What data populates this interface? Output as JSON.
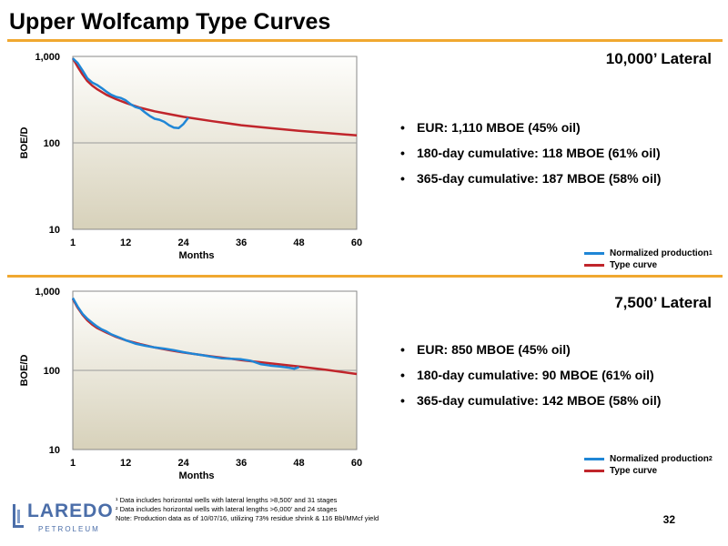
{
  "title": "Upper Wolfcamp Type Curves",
  "colors": {
    "accent": "#f0a830",
    "normalized": "#1f86d6",
    "type_curve": "#c0252b"
  },
  "panels": [
    {
      "lateral": "10,000’ Lateral",
      "bullets": [
        "EUR:  1,110 MBOE (45% oil)",
        "180-day cumulative:  118 MBOE (61% oil)",
        "365-day cumulative: 187 MBOE (58% oil)"
      ],
      "legend": [
        {
          "label": "Normalized production",
          "note": "1"
        },
        {
          "label": "Type curve",
          "note": ""
        }
      ]
    },
    {
      "lateral": "7,500’ Lateral",
      "bullets": [
        "EUR:  850 MBOE (45% oil)",
        "180-day cumulative:  90 MBOE (61% oil)",
        "365-day cumulative: 142 MBOE (58% oil)"
      ],
      "legend": [
        {
          "label": "Normalized production",
          "note": "2"
        },
        {
          "label": "Type curve",
          "note": ""
        }
      ]
    }
  ],
  "chart_data": [
    {
      "type": "line",
      "xlabel": "Months",
      "ylabel": "BOE/D",
      "xlim": [
        1,
        60
      ],
      "ylim": [
        10,
        1000
      ],
      "yscale": "log",
      "x_ticks": [
        "1",
        "12",
        "24",
        "36",
        "48",
        "60"
      ],
      "y_ticks": [
        "10",
        "100",
        "1,000"
      ],
      "series": [
        {
          "name": "Normalized production",
          "x": [
            1,
            2,
            3,
            4,
            5,
            6,
            7,
            8,
            9,
            10,
            11,
            12,
            13,
            14,
            15,
            16,
            17,
            18,
            19,
            20,
            21,
            22,
            23,
            24,
            25
          ],
          "y": [
            950,
            840,
            690,
            560,
            500,
            470,
            430,
            390,
            360,
            340,
            330,
            310,
            280,
            260,
            250,
            225,
            205,
            190,
            185,
            175,
            160,
            150,
            148,
            165,
            195
          ]
        },
        {
          "name": "Type curve",
          "x": [
            1,
            2,
            3,
            4,
            5,
            6,
            8,
            10,
            12,
            15,
            18,
            21,
            24,
            30,
            36,
            42,
            48,
            54,
            60
          ],
          "y": [
            950,
            760,
            620,
            520,
            460,
            420,
            360,
            320,
            290,
            255,
            232,
            215,
            200,
            178,
            160,
            148,
            138,
            130,
            122
          ]
        }
      ]
    },
    {
      "type": "line",
      "xlabel": "Months",
      "ylabel": "BOE/D",
      "xlim": [
        1,
        60
      ],
      "ylim": [
        10,
        1000
      ],
      "yscale": "log",
      "x_ticks": [
        "1",
        "12",
        "24",
        "36",
        "48",
        "60"
      ],
      "y_ticks": [
        "10",
        "100",
        "1,000"
      ],
      "series": [
        {
          "name": "Normalized production",
          "x": [
            1,
            2,
            3,
            4,
            5,
            6,
            7,
            8,
            9,
            10,
            11,
            12,
            14,
            16,
            18,
            20,
            22,
            24,
            26,
            28,
            30,
            32,
            34,
            36,
            38,
            40,
            42,
            44,
            46,
            47,
            48
          ],
          "y": [
            820,
            640,
            520,
            450,
            400,
            360,
            330,
            310,
            285,
            270,
            255,
            240,
            218,
            205,
            195,
            188,
            180,
            170,
            162,
            155,
            148,
            142,
            140,
            138,
            132,
            120,
            115,
            112,
            108,
            105,
            110
          ]
        },
        {
          "name": "Type curve",
          "x": [
            1,
            2,
            3,
            4,
            5,
            6,
            8,
            10,
            12,
            15,
            18,
            21,
            24,
            30,
            36,
            42,
            48,
            54,
            60
          ],
          "y": [
            800,
            620,
            505,
            430,
            380,
            345,
            300,
            265,
            240,
            215,
            195,
            180,
            168,
            150,
            135,
            123,
            112,
            101,
            90
          ]
        }
      ]
    }
  ],
  "footnotes": [
    "¹ Data includes horizontal wells with lateral lengths >8,500’ and 31 stages",
    "² Data includes horizontal wells with lateral lengths >6,000’ and 24 stages",
    "Note: Production data as of 10/07/16, utilizing 73% residue shrink & 116 Bbl/MMcf yield"
  ],
  "page_number": "32",
  "logo": {
    "word": "LAREDO",
    "sub": "PETROLEUM"
  }
}
